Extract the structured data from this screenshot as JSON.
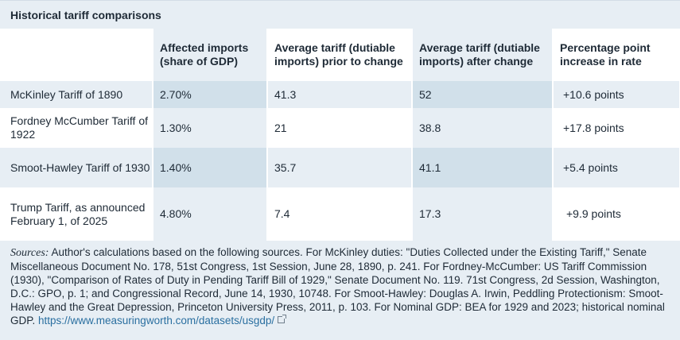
{
  "title": "Historical tariff comparisons",
  "table": {
    "headers": [
      "",
      "Affected imports (share of GDP)",
      "Average tariff (dutiable imports) prior to change",
      "Average tariff (dutiable imports) after change",
      "Percentage point increase in rate"
    ],
    "rows": [
      [
        "McKinley Tariff of 1890",
        "2.70%",
        "41.3",
        "52",
        "+10.6 points"
      ],
      [
        "Fordney McCumber Tariff of 1922",
        "1.30%",
        "21",
        "38.8",
        "+17.8 points"
      ],
      [
        "Smoot-Hawley Tariff of 1930",
        "1.40%",
        "35.7",
        "41.1",
        "+5.4 points"
      ],
      [
        "Trump Tariff, as announced February 1, of 2025",
        "4.80%",
        "7.4",
        "17.3",
        "+9.9 points"
      ]
    ]
  },
  "sources": {
    "lead": "Sources:",
    "text": " Author's calculations based on the following sources. For McKinley duties: \"Duties Collected under the Existing Tariff,\" Senate Miscellaneous Document No. 178, 51st Congress, 1st Session, June 28, 1890, p. 241. For Fordney-McCumber: US Tariff Commission (1930), \"Comparison of Rates of Duty in Pending Tariff Bill of 1929,\" Senate Document No. 119. 71st Congress, 2d Session, Washington, D.C.: GPO, p. 1; and Congressional Record, June 14, 1930, 10748. For Smoot-Hawley: Douglas A. Irwin, Peddling Protectionism: Smoot-Hawley and the Great Depression, Princeton University Press, 2011, p. 103. For Nominal GDP: BEA for 1929 and 2023; historical nominal GDP. ",
    "link": "https://www.measuringworth.com/datasets/usgdp/",
    "link_icon": "external-link-icon"
  }
}
